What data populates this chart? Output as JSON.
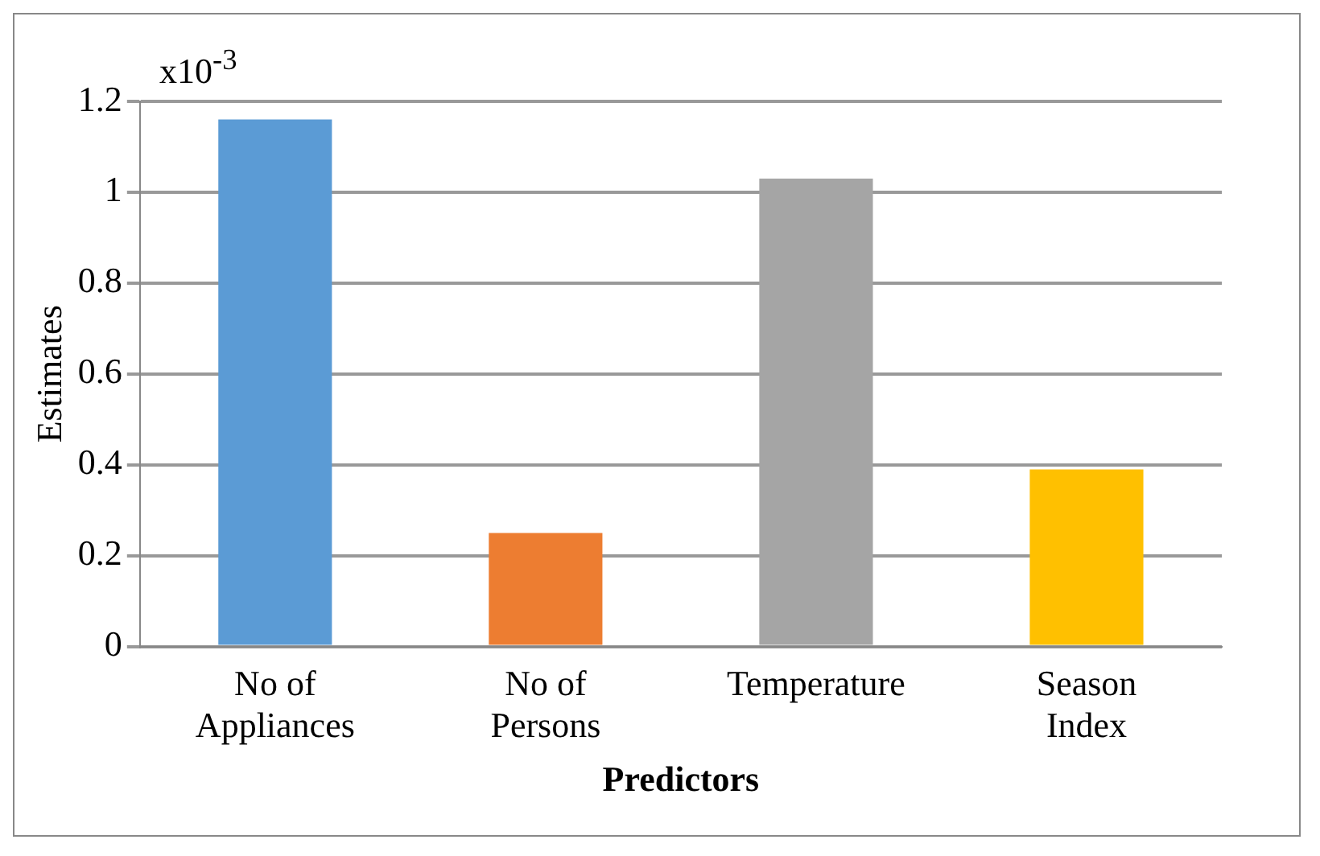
{
  "chart_data": {
    "type": "bar",
    "xlabel": "Predictors",
    "ylabel": "Estimates",
    "categories": [
      "No of Appliances",
      "No of Persons",
      "Temperature",
      "Season Index"
    ],
    "values": [
      1.16,
      0.25,
      1.03,
      0.39
    ],
    "colors": [
      "#5b9bd5",
      "#ed7d31",
      "#a5a5a5",
      "#ffc000"
    ],
    "ylim": [
      0,
      1.2
    ],
    "yticks": [
      0,
      0.2,
      0.4,
      0.6,
      0.8,
      1,
      1.2
    ],
    "grid": "y",
    "annotations": [
      "x10$^{-3}$"
    ]
  }
}
